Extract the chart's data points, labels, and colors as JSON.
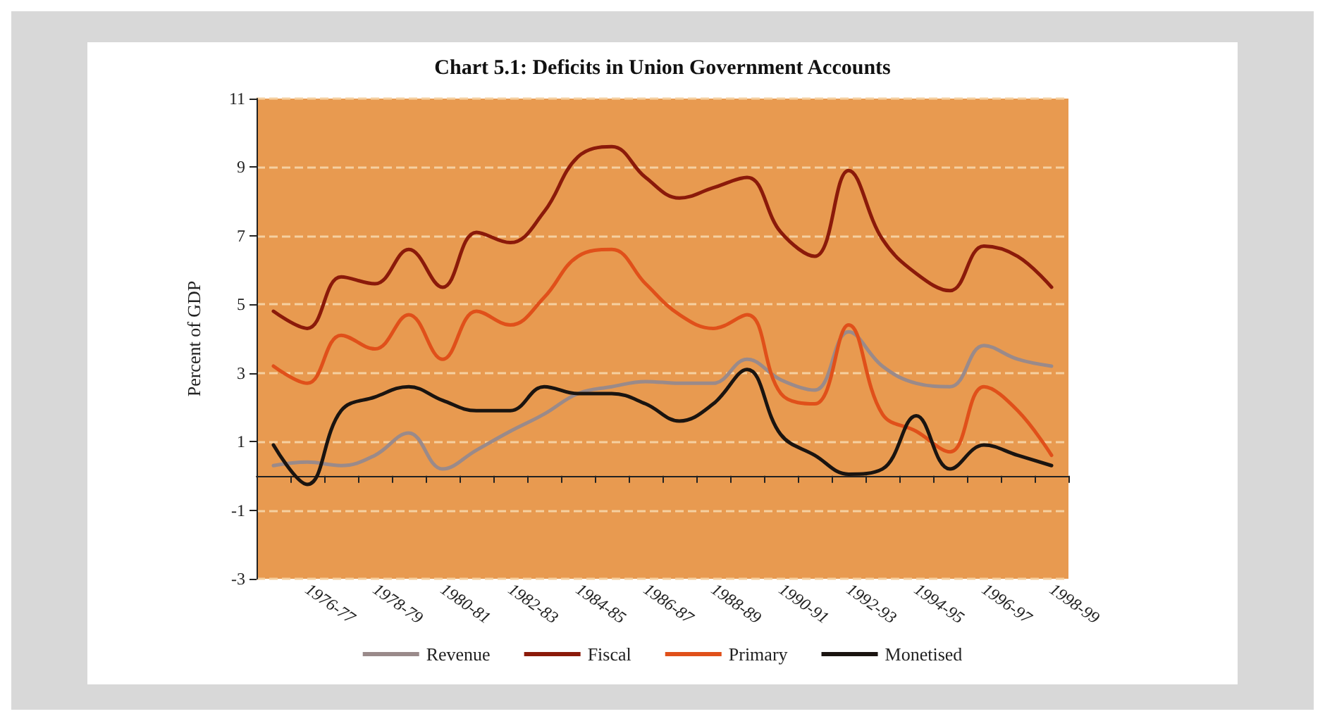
{
  "chart_data": {
    "type": "line",
    "title": "Chart 5.1: Deficits in Union Government Accounts",
    "ylabel": "Percent of GDP",
    "categories": [
      null,
      "1976-77",
      null,
      "1978-79",
      null,
      "1980-81",
      null,
      "1982-83",
      null,
      "1984-85",
      null,
      "1986-87",
      null,
      "1988-89",
      null,
      "1990-91",
      null,
      "1992-93",
      null,
      "1994-95",
      null,
      "1996-97",
      null,
      "1998-99"
    ],
    "series": [
      {
        "name": "Revenue",
        "color": "#9a8a8a",
        "values": [
          0.3,
          0.4,
          0.3,
          0.6,
          1.25,
          0.2,
          0.75,
          1.3,
          1.8,
          2.4,
          2.6,
          2.75,
          2.7,
          2.7,
          3.4,
          2.8,
          2.5,
          4.2,
          3.2,
          2.7,
          2.6,
          3.8,
          3.4,
          3.2
        ]
      },
      {
        "name": "Fiscal",
        "color": "#8b1a0a",
        "values": [
          4.8,
          4.3,
          5.8,
          5.6,
          6.6,
          5.5,
          7.1,
          6.8,
          7.7,
          9.3,
          9.6,
          8.7,
          8.1,
          8.4,
          8.7,
          7.1,
          6.4,
          8.9,
          6.9,
          5.9,
          5.4,
          6.7,
          6.4,
          5.5
        ]
      },
      {
        "name": "Primary",
        "color": "#e0501a",
        "values": [
          3.2,
          2.7,
          4.1,
          3.7,
          4.7,
          3.4,
          4.8,
          4.4,
          5.2,
          6.4,
          6.6,
          5.6,
          4.7,
          4.3,
          4.7,
          2.4,
          2.1,
          4.4,
          1.8,
          1.3,
          0.7,
          2.6,
          1.9,
          0.6
        ]
      },
      {
        "name": "Monetised",
        "color": "#1a1410",
        "values": [
          0.9,
          -0.25,
          1.9,
          2.3,
          2.6,
          2.2,
          1.9,
          1.9,
          2.6,
          2.4,
          2.4,
          2.1,
          1.6,
          2.1,
          3.1,
          1.2,
          0.6,
          0.05,
          0.2,
          1.75,
          0.2,
          0.9,
          0.6,
          0.3
        ]
      }
    ],
    "ylim": [
      -3,
      11
    ],
    "yticks": [
      -3,
      -1,
      1,
      3,
      5,
      7,
      9,
      11
    ],
    "grid": "y",
    "legend": "bottom",
    "marker": "none",
    "line_style": "solid"
  }
}
